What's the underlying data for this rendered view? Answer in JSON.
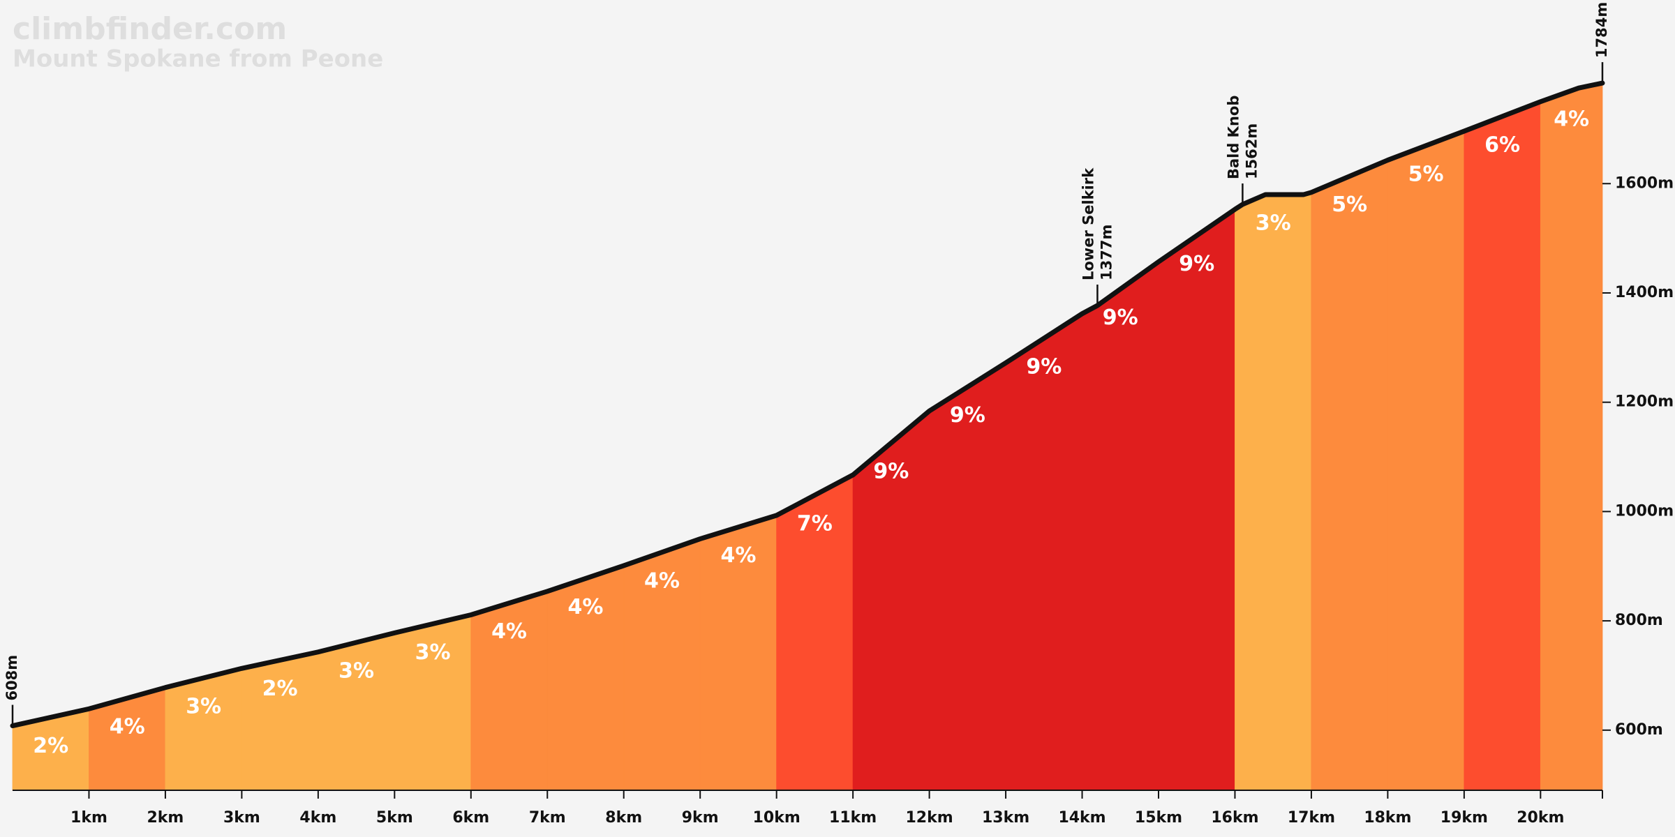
{
  "chart_data": {
    "type": "elevation-profile",
    "title": "climbfinder.com",
    "subtitle": "Mount Spokane from Peone",
    "x": [
      0,
      1,
      2,
      3,
      4,
      5,
      6,
      7,
      8,
      9,
      10,
      11,
      12,
      13,
      14,
      14.2,
      15,
      16,
      16.1,
      16.4,
      16.9,
      17,
      18,
      19,
      20,
      20.5,
      20.81
    ],
    "values": [
      608,
      639,
      678,
      713,
      743,
      778,
      811,
      854,
      901,
      950,
      993,
      1067,
      1184,
      1272,
      1362,
      1377,
      1457,
      1553,
      1562,
      1580,
      1580,
      1584,
      1643,
      1696,
      1750,
      1775,
      1784
    ],
    "line_color": "#111111",
    "segments": {
      "bins": [
        0,
        1,
        2,
        3,
        4,
        5,
        6,
        7,
        8,
        9,
        10,
        11,
        12,
        13,
        14,
        15,
        16,
        17,
        18,
        19,
        20,
        20.81
      ],
      "values": [
        2,
        4,
        3,
        2,
        3,
        3,
        4,
        4,
        4,
        4,
        7,
        9,
        9,
        9,
        9,
        9,
        3,
        5,
        5,
        6,
        4
      ],
      "value_labels": [
        "2%",
        "4%",
        "3%",
        "2%",
        "3%",
        "3%",
        "4%",
        "4%",
        "4%",
        "4%",
        "7%",
        "9%",
        "9%",
        "9%",
        "9%",
        "9%",
        "3%",
        "5%",
        "5%",
        "6%",
        "4%"
      ],
      "colors": [
        "#fdb04b",
        "#fd8b3d",
        "#fdb04b",
        "#fdb04b",
        "#fdb04b",
        "#fdb04b",
        "#fd8b3d",
        "#fd8b3d",
        "#fd8b3d",
        "#fd8b3d",
        "#fd4d2e",
        "#e01e1e",
        "#e01e1e",
        "#e01e1e",
        "#e01e1e",
        "#e01e1e",
        "#fdb04b",
        "#fd8b3d",
        "#fd8b3d",
        "#fd4d2e",
        "#fd8b3d"
      ]
    },
    "annotations": [
      {
        "x": 0,
        "value": 608,
        "label": "608m"
      },
      {
        "x": 14.2,
        "value": 1377,
        "name": "Lower Selkirk",
        "label": "1377m"
      },
      {
        "x": 16.1,
        "value": 1562,
        "name": "Bald Knob",
        "label": "1562m"
      },
      {
        "x": 20.81,
        "value": 1784,
        "label": "1784m"
      }
    ],
    "xlim": [
      0,
      20.81
    ],
    "ylim": [
      490,
      1936
    ],
    "xticks": [
      {
        "value": 1,
        "label": "1km"
      },
      {
        "value": 2,
        "label": "2km"
      },
      {
        "value": 3,
        "label": "3km"
      },
      {
        "value": 4,
        "label": "4km"
      },
      {
        "value": 5,
        "label": "5km"
      },
      {
        "value": 6,
        "label": "6km"
      },
      {
        "value": 7,
        "label": "7km"
      },
      {
        "value": 8,
        "label": "8km"
      },
      {
        "value": 9,
        "label": "9km"
      },
      {
        "value": 10,
        "label": "10km"
      },
      {
        "value": 11,
        "label": "11km"
      },
      {
        "value": 12,
        "label": "12km"
      },
      {
        "value": 13,
        "label": "13km"
      },
      {
        "value": 14,
        "label": "14km"
      },
      {
        "value": 15,
        "label": "15km"
      },
      {
        "value": 16,
        "label": "16km"
      },
      {
        "value": 17,
        "label": "17km"
      },
      {
        "value": 18,
        "label": "18km"
      },
      {
        "value": 19,
        "label": "19km"
      },
      {
        "value": 20,
        "label": "20km"
      }
    ],
    "yticks": [
      {
        "value": 600,
        "label": "600m"
      },
      {
        "value": 800,
        "label": "800m"
      },
      {
        "value": 1000,
        "label": "1000m"
      },
      {
        "value": 1200,
        "label": "1200m"
      },
      {
        "value": 1400,
        "label": "1400m"
      },
      {
        "value": 1600,
        "label": "1600m"
      }
    ]
  }
}
